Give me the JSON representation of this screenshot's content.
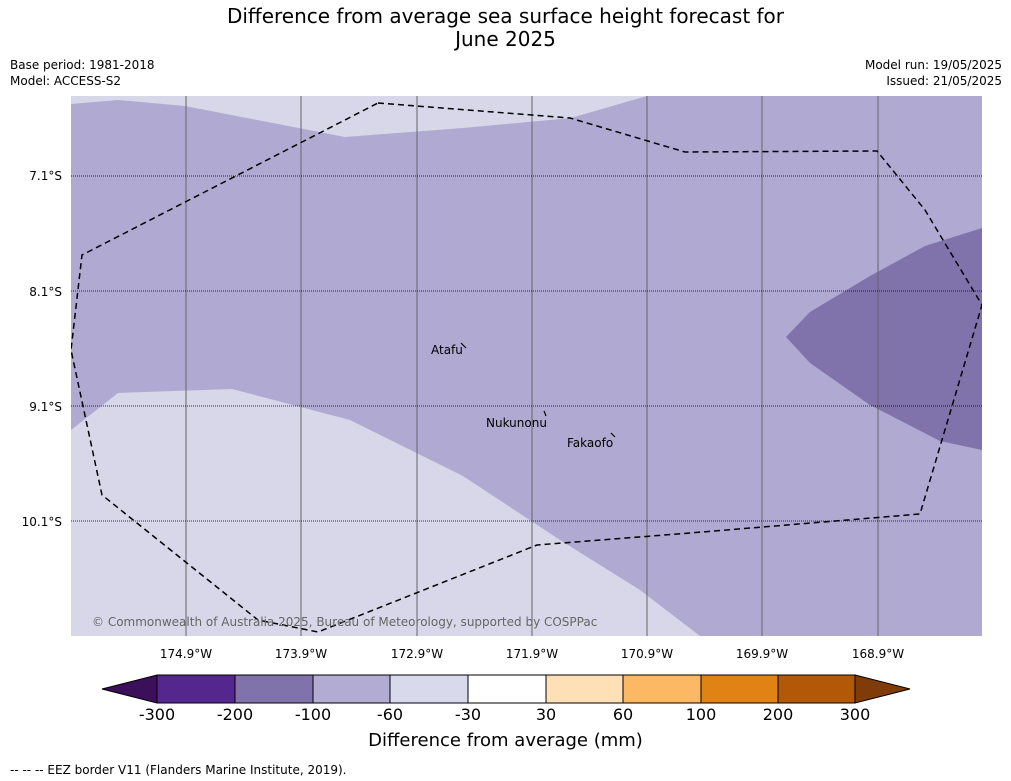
{
  "title_line1": "Difference from average sea surface height forecast for",
  "title_line2": "June 2025",
  "base_period": "Base period: 1981-2018",
  "model": "Model: ACCESS-S2",
  "model_run": "Model run: 19/05/2025",
  "issued": "Issued: 21/05/2025",
  "lat_labels": [
    "7.1°S",
    "8.1°S",
    "9.1°S",
    "10.1°S"
  ],
  "lon_labels": [
    "174.9°W",
    "173.9°W",
    "172.9°W",
    "171.9°W",
    "170.9°W",
    "169.9°W",
    "168.9°W"
  ],
  "places": {
    "atafu": "Atafu",
    "nukunonu": "Nukunonu",
    "fakaofo": "Fakaofo"
  },
  "copyright": "© Commonwealth of Australia 2025, Bureau of Meteorology, supported by COSPPac",
  "colorbar": {
    "ticks": [
      "-300",
      "-200",
      "-100",
      "-60",
      "-30",
      "30",
      "60",
      "100",
      "200",
      "300"
    ],
    "colors": [
      "#3b0f5a",
      "#54278f",
      "#8073ac",
      "#b2abd2",
      "#d8daeb",
      "#ffffff",
      "#fee0b6",
      "#fdb863",
      "#e08214",
      "#b35806",
      "#7f3b08"
    ],
    "label": "Difference from average (mm)"
  },
  "eez_note": "--  --  -- EEZ border V11 (Flanders Marine Institute, 2019)."
}
